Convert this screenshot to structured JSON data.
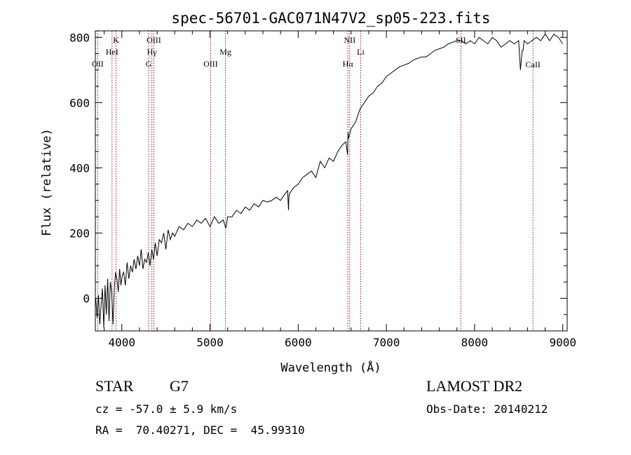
{
  "chart_data": {
    "type": "line",
    "title": "spec-56701-GAC071N47V2_sp05-223.fits",
    "xlabel": "Wavelength (Å)",
    "ylabel": "Flux (relative)",
    "xlim": [
      3700,
      9050
    ],
    "ylim": [
      -100,
      820
    ],
    "xticks": [
      4000,
      5000,
      6000,
      7000,
      8000,
      9000
    ],
    "yticks": [
      0,
      200,
      400,
      600,
      800
    ],
    "line_color": "#000000",
    "marker_color": "#8b1a1a",
    "series": [
      {
        "x": [
          3705,
          3720,
          3735,
          3750,
          3765,
          3780,
          3795,
          3810,
          3825,
          3840,
          3855,
          3870,
          3885,
          3900,
          3915,
          3930,
          3945,
          3960,
          3975,
          3990,
          4005,
          4020,
          4040,
          4060,
          4080,
          4100,
          4120,
          4140,
          4160,
          4180,
          4200,
          4220,
          4240,
          4260,
          4280,
          4300,
          4320,
          4340,
          4360,
          4380,
          4400,
          4425,
          4450,
          4475,
          4500,
          4525,
          4550,
          4575,
          4600,
          4650,
          4700,
          4750,
          4800,
          4850,
          4900,
          4950,
          5000,
          5050,
          5100,
          5150,
          5180,
          5200,
          5250,
          5300,
          5350,
          5400,
          5450,
          5500,
          5550,
          5600,
          5650,
          5700,
          5750,
          5800,
          5850,
          5880,
          5890,
          5895,
          5900,
          5950,
          6000,
          6050,
          6100,
          6150,
          6200,
          6250,
          6300,
          6350,
          6400,
          6450,
          6500,
          6540,
          6560,
          6565,
          6570,
          6600,
          6650,
          6700,
          6750,
          6800,
          6850,
          6900,
          6950,
          7000,
          7050,
          7100,
          7150,
          7200,
          7250,
          7300,
          7350,
          7400,
          7450,
          7500,
          7550,
          7600,
          7650,
          7700,
          7750,
          7800,
          7850,
          7900,
          7950,
          8000,
          8050,
          8100,
          8150,
          8200,
          8250,
          8300,
          8350,
          8400,
          8450,
          8500,
          8520,
          8540,
          8550,
          8560,
          8600,
          8650,
          8700,
          8750,
          8800,
          8850,
          8900,
          8950,
          9000
        ],
        "y": [
          0,
          -60,
          10,
          -80,
          -20,
          30,
          -90,
          40,
          -50,
          60,
          -70,
          50,
          20,
          -80,
          30,
          80,
          60,
          20,
          90,
          40,
          70,
          80,
          40,
          110,
          60,
          100,
          80,
          120,
          90,
          130,
          100,
          150,
          90,
          120,
          110,
          140,
          100,
          150,
          120,
          170,
          130,
          180,
          170,
          200,
          150,
          210,
          180,
          200,
          190,
          220,
          210,
          230,
          220,
          240,
          230,
          245,
          220,
          250,
          230,
          240,
          215,
          250,
          250,
          270,
          260,
          280,
          270,
          290,
          280,
          300,
          295,
          300,
          310,
          300,
          320,
          330,
          270,
          310,
          320,
          340,
          350,
          370,
          380,
          390,
          370,
          420,
          400,
          430,
          420,
          450,
          470,
          480,
          440,
          510,
          490,
          520,
          540,
          580,
          600,
          620,
          630,
          650,
          660,
          680,
          690,
          700,
          710,
          715,
          720,
          730,
          735,
          740,
          740,
          750,
          760,
          765,
          770,
          780,
          785,
          790,
          790,
          780,
          790,
          780,
          800,
          790,
          780,
          800,
          790,
          770,
          780,
          790,
          780,
          790,
          700,
          760,
          760,
          790,
          780,
          790,
          800,
          790,
          810,
          790,
          810,
          800,
          780
        ]
      }
    ],
    "annotations": {
      "top_row": [
        {
          "label": "OII",
          "x": 3727,
          "level": 3
        },
        {
          "label": "HeI",
          "x": 3889,
          "level": 2
        },
        {
          "label": "K",
          "x": 3934,
          "level": 1
        },
        {
          "label": "G",
          "x": 4304,
          "level": 3
        },
        {
          "label": "Hγ",
          "x": 4341,
          "level": 2
        },
        {
          "label": "OIII",
          "x": 4363,
          "level": 1
        },
        {
          "label": "OIII",
          "x": 5007,
          "level": 3
        },
        {
          "label": "Mg",
          "x": 5175,
          "level": 2
        },
        {
          "label": "Hα",
          "x": 6563,
          "level": 3
        },
        {
          "label": "NII",
          "x": 6584,
          "level": 1
        },
        {
          "label": "Li",
          "x": 6708,
          "level": 2
        },
        {
          "label": "SII",
          "x": 7844,
          "level": 1
        }
      ],
      "inside": [
        {
          "label": "CaII",
          "x": 8662
        }
      ]
    },
    "grid": false
  },
  "info": {
    "object_type": "STAR",
    "subclass": "G7",
    "survey": "LAMOST DR2",
    "redshift": "cz = -57.0 ± 5.9 km/s",
    "obs_date": "Obs-Date: 20140212",
    "coords": "RA =  70.40271, DEC =  45.99310"
  }
}
